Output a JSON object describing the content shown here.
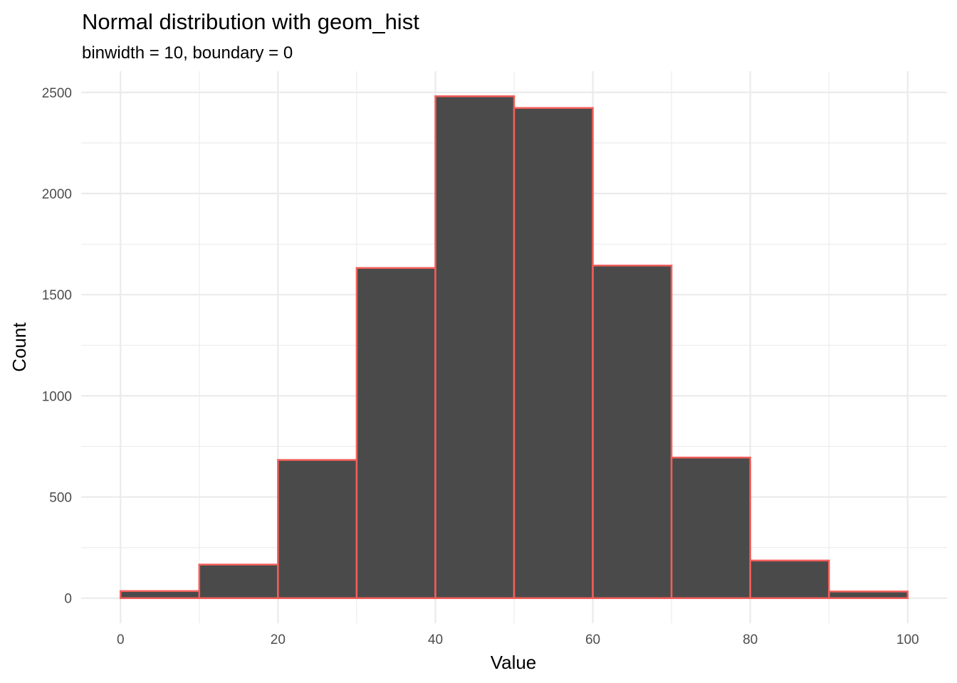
{
  "chart_data": {
    "type": "bar",
    "title": "Normal distribution with geom_hist",
    "subtitle": "binwidth = 10, boundary = 0",
    "xlabel": "Value",
    "ylabel": "Count",
    "bins": [
      {
        "x_start": 0,
        "x_end": 10,
        "count": 35
      },
      {
        "x_start": 10,
        "x_end": 20,
        "count": 166
      },
      {
        "x_start": 20,
        "x_end": 30,
        "count": 683
      },
      {
        "x_start": 30,
        "x_end": 40,
        "count": 1632
      },
      {
        "x_start": 40,
        "x_end": 50,
        "count": 2481
      },
      {
        "x_start": 50,
        "x_end": 60,
        "count": 2423
      },
      {
        "x_start": 60,
        "x_end": 70,
        "count": 1644
      },
      {
        "x_start": 70,
        "x_end": 80,
        "count": 695
      },
      {
        "x_start": 80,
        "x_end": 90,
        "count": 186
      },
      {
        "x_start": 90,
        "x_end": 100,
        "count": 33
      }
    ],
    "xlim": [
      -5,
      105
    ],
    "ylim": [
      -124,
      2605
    ],
    "x_ticks": [
      0,
      20,
      40,
      60,
      80,
      100
    ],
    "x_minor_ticks": [
      10,
      30,
      50,
      70,
      90
    ],
    "y_ticks": [
      0,
      500,
      1000,
      1500,
      2000,
      2500
    ],
    "y_minor_ticks": [
      250,
      750,
      1250,
      1750,
      2250
    ],
    "grid": true,
    "legend": "none",
    "bar_fill": "#4a4a4a",
    "bar_outline": "#f35e5a"
  }
}
